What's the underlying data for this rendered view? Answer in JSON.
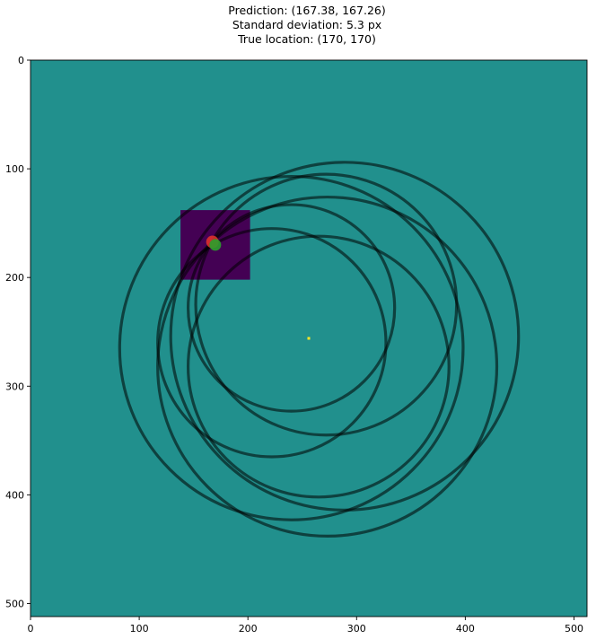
{
  "chart_data": {
    "type": "heatmap",
    "title_lines": [
      "Prediction: (167.38, 167.26)",
      "Standard deviation: 5.3 px",
      "True location: (170, 170)"
    ],
    "xlim": [
      0,
      512
    ],
    "ylim": [
      512,
      0
    ],
    "x_ticks": [
      0,
      100,
      200,
      300,
      400,
      500
    ],
    "y_ticks": [
      0,
      100,
      200,
      300,
      400,
      500
    ],
    "colors": {
      "background": "#21908d",
      "crop_region": "#440154",
      "center_marker": "#fde725",
      "circle_stroke": "#000000",
      "prediction_marker": "#e8342c",
      "true_marker": "#2ca02c"
    },
    "crop_region": {
      "x_range": [
        138,
        202
      ],
      "y_range": [
        138,
        202
      ]
    },
    "center_point": [
      256,
      256
    ],
    "circles": [
      {
        "cx": 289,
        "cy": 254,
        "r": 160
      },
      {
        "cx": 272,
        "cy": 225,
        "r": 120
      },
      {
        "cx": 265,
        "cy": 282,
        "r": 120
      },
      {
        "cx": 240,
        "cy": 265,
        "r": 158
      },
      {
        "cx": 240,
        "cy": 228,
        "r": 95
      },
      {
        "cx": 222,
        "cy": 260,
        "r": 105
      },
      {
        "cx": 273,
        "cy": 282,
        "r": 156
      }
    ],
    "prediction": {
      "x": 167.38,
      "y": 167.26
    },
    "true_location": {
      "x": 170,
      "y": 170
    }
  }
}
